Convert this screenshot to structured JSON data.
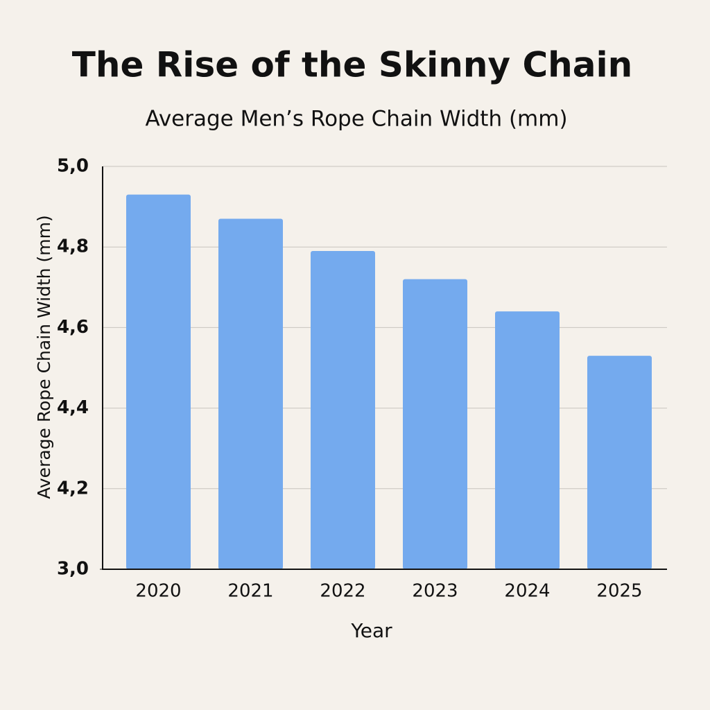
{
  "chart_data": {
    "type": "bar",
    "title": "The Rise of the Skinny Chain",
    "subtitle": "Average Men’s Rope Chain Width (mm)",
    "x_label": "Year",
    "y_label": "Average Rope Chain Width (mm)",
    "categories": [
      "2020",
      "2021",
      "2022",
      "2023",
      "2024",
      "2025"
    ],
    "values": [
      4.93,
      4.87,
      4.79,
      4.72,
      4.64,
      4.53
    ],
    "color": "#74aaee",
    "ylim": [
      3.0,
      5.0
    ],
    "axis_break": [
      3.0,
      4.0
    ],
    "yticks": [
      {
        "value": 3.0,
        "label": "3,0"
      },
      {
        "value": 4.2,
        "label": "4,2"
      },
      {
        "value": 4.4,
        "label": "4,4"
      },
      {
        "value": 4.6,
        "label": "4,6"
      },
      {
        "value": 4.8,
        "label": "4,8"
      },
      {
        "value": 5.0,
        "label": "5,0"
      }
    ],
    "grid": true
  }
}
